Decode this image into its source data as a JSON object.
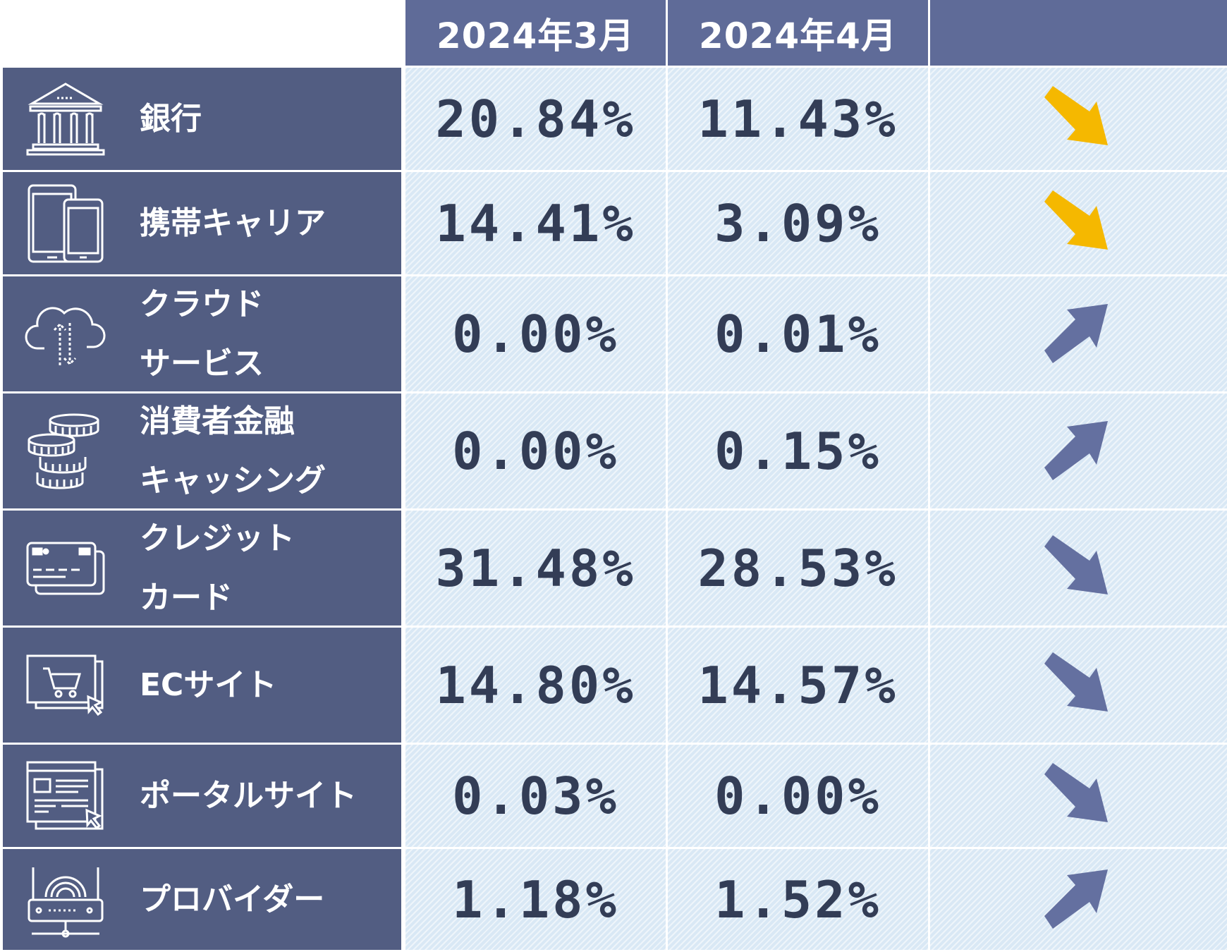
{
  "colors": {
    "header_bg": "#5f6b98",
    "label_bg": "#525d82",
    "cell_bg": "#d9e8f5",
    "value_text": "#333d56",
    "arrow_down_highlight": "#f5b800",
    "arrow_default": "#6470a0"
  },
  "chart_data": {
    "type": "table",
    "columns": [
      "2024年3月",
      "2024年4月"
    ],
    "rows": [
      {
        "label": [
          "銀行"
        ],
        "icon": "bank-icon",
        "march": "20.84%",
        "april": "11.43%",
        "trend": "down",
        "highlight": true
      },
      {
        "label": [
          "携帯キャリア"
        ],
        "icon": "mobile-devices-icon",
        "march": "14.41%",
        "april": "3.09%",
        "trend": "down",
        "highlight": true
      },
      {
        "label": [
          "クラウド",
          "サービス"
        ],
        "icon": "cloud-sync-icon",
        "march": "0.00%",
        "april": "0.01%",
        "trend": "up",
        "highlight": false
      },
      {
        "label": [
          "消費者金融",
          "キャッシング"
        ],
        "icon": "coins-stack-icon",
        "march": "0.00%",
        "april": "0.15%",
        "trend": "up",
        "highlight": false
      },
      {
        "label": [
          "クレジット",
          "カード"
        ],
        "icon": "credit-card-icon",
        "march": "31.48%",
        "april": "28.53%",
        "trend": "down",
        "highlight": false
      },
      {
        "label": [
          "ECサイト"
        ],
        "icon": "shopping-cart-icon",
        "march": "14.80%",
        "april": "14.57%",
        "trend": "down",
        "highlight": false
      },
      {
        "label": [
          "ポータルサイト"
        ],
        "icon": "web-portal-icon",
        "march": "0.03%",
        "april": "0.00%",
        "trend": "down",
        "highlight": false
      },
      {
        "label": [
          "プロバイダー"
        ],
        "icon": "router-icon",
        "march": "1.18%",
        "april": "1.52%",
        "trend": "up",
        "highlight": false
      }
    ]
  }
}
